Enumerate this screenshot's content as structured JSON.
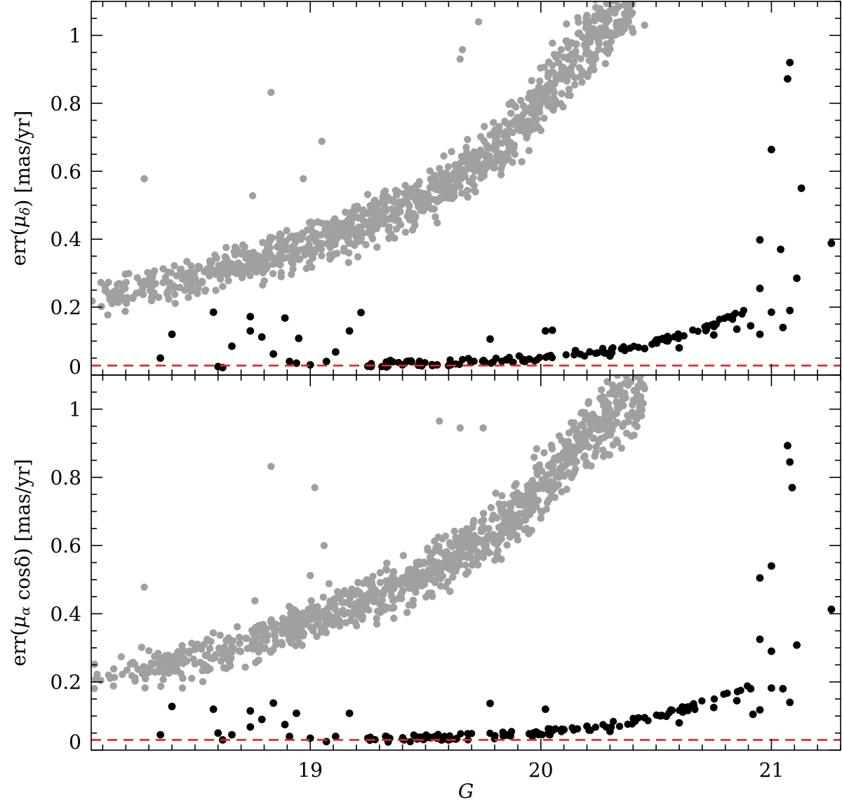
{
  "chart_data": [
    {
      "type": "scatter",
      "panel": "top",
      "ylabel_prefix": "err(",
      "ylabel_mu": "μ",
      "ylabel_sub": "δ",
      "ylabel_suffix": ")  [mas/yr]",
      "xlabel": "",
      "xlim": [
        18.05,
        21.3
      ],
      "ylim": [
        0,
        1.1
      ],
      "yticks": [
        0,
        0.2,
        0.4,
        0.6,
        0.8,
        1
      ],
      "ytick_labels": [
        "0",
        "0.2",
        "0.4",
        "0.6",
        "0.8",
        "1"
      ],
      "xticks": [
        19,
        20,
        21
      ],
      "xtick_labels": [
        "",
        "",
        ""
      ],
      "reference_line": 0.028,
      "grey_curve": [
        [
          18.05,
          0.225
        ],
        [
          18.5,
          0.285
        ],
        [
          19.0,
          0.38
        ],
        [
          19.4,
          0.49
        ],
        [
          19.7,
          0.61
        ],
        [
          19.95,
          0.76
        ],
        [
          20.1,
          0.9
        ],
        [
          20.25,
          1.02
        ],
        [
          20.4,
          1.1
        ]
      ],
      "grey_spread": 0.045,
      "grey_outliers": [
        [
          18.28,
          0.578
        ],
        [
          18.83,
          0.832
        ],
        [
          19.05,
          0.688
        ],
        [
          18.97,
          0.578
        ],
        [
          18.75,
          0.528
        ],
        [
          19.73,
          1.04
        ],
        [
          19.66,
          0.958
        ],
        [
          19.65,
          0.93
        ],
        [
          20.0,
          0.72
        ],
        [
          20.45,
          1.03
        ],
        [
          20.33,
          1.08
        ]
      ],
      "black_points": [
        [
          18.35,
          0.05
        ],
        [
          18.4,
          0.12
        ],
        [
          18.58,
          0.185
        ],
        [
          18.6,
          0.025
        ],
        [
          18.62,
          0.022
        ],
        [
          18.66,
          0.085
        ],
        [
          18.74,
          0.172
        ],
        [
          18.74,
          0.13
        ],
        [
          18.79,
          0.112
        ],
        [
          18.84,
          0.062
        ],
        [
          18.89,
          0.168
        ],
        [
          18.91,
          0.04
        ],
        [
          18.94,
          0.035
        ],
        [
          18.95,
          0.108
        ],
        [
          19.0,
          0.03
        ],
        [
          19.07,
          0.04
        ],
        [
          19.11,
          0.068
        ],
        [
          19.17,
          0.13
        ],
        [
          19.22,
          0.184
        ],
        [
          19.25,
          0.026
        ],
        [
          19.33,
          0.038
        ],
        [
          19.4,
          0.03
        ],
        [
          19.48,
          0.03
        ],
        [
          19.55,
          0.03
        ],
        [
          19.6,
          0.028
        ],
        [
          19.78,
          0.106
        ],
        [
          19.85,
          0.045
        ],
        [
          19.95,
          0.047
        ],
        [
          20.02,
          0.13
        ],
        [
          20.05,
          0.132
        ],
        [
          20.15,
          0.072
        ],
        [
          20.3,
          0.056
        ],
        [
          20.45,
          0.078
        ],
        [
          20.6,
          0.08
        ],
        [
          20.75,
          0.118
        ],
        [
          20.85,
          0.135
        ],
        [
          20.91,
          0.145
        ],
        [
          20.95,
          0.398
        ],
        [
          20.95,
          0.255
        ],
        [
          20.95,
          0.12
        ],
        [
          21.0,
          0.185
        ],
        [
          21.0,
          0.664
        ],
        [
          21.04,
          0.37
        ],
        [
          21.05,
          0.14
        ],
        [
          21.07,
          0.872
        ],
        [
          21.08,
          0.92
        ],
        [
          21.08,
          0.19
        ],
        [
          21.11,
          0.285
        ],
        [
          21.13,
          0.55
        ],
        [
          21.26,
          0.388
        ]
      ]
    },
    {
      "type": "scatter",
      "panel": "bottom",
      "ylabel_prefix": "err(",
      "ylabel_mu": "μ",
      "ylabel_sub": "α",
      "ylabel_suffix": "  cosδ)  [mas/yr]",
      "xlabel": "G",
      "xlim": [
        18.05,
        21.3
      ],
      "ylim": [
        0,
        1.1
      ],
      "yticks": [
        0,
        0.2,
        0.4,
        0.6,
        0.8,
        1
      ],
      "ytick_labels": [
        "0",
        "0.2",
        "0.4",
        "0.6",
        "0.8",
        "1"
      ],
      "xticks": [
        19,
        20,
        21
      ],
      "xtick_labels": [
        "19",
        "20",
        "21"
      ],
      "reference_line": 0.03,
      "grey_curve": [
        [
          18.05,
          0.21
        ],
        [
          18.5,
          0.262
        ],
        [
          19.0,
          0.38
        ],
        [
          19.4,
          0.48
        ],
        [
          19.7,
          0.59
        ],
        [
          19.95,
          0.73
        ],
        [
          20.1,
          0.85
        ],
        [
          20.25,
          0.95
        ],
        [
          20.45,
          1.08
        ]
      ],
      "grey_spread": 0.045,
      "grey_outliers": [
        [
          18.28,
          0.478
        ],
        [
          18.83,
          0.832
        ],
        [
          19.02,
          0.77
        ],
        [
          19.06,
          0.6
        ],
        [
          19.0,
          0.512
        ],
        [
          18.76,
          0.438
        ],
        [
          19.56,
          0.965
        ],
        [
          19.65,
          0.945
        ],
        [
          19.75,
          0.945
        ],
        [
          20.0,
          0.68
        ],
        [
          20.45,
          1.06
        ]
      ],
      "black_points": [
        [
          18.35,
          0.045
        ],
        [
          18.4,
          0.128
        ],
        [
          18.58,
          0.12
        ],
        [
          18.6,
          0.05
        ],
        [
          18.62,
          0.03
        ],
        [
          18.66,
          0.045
        ],
        [
          18.74,
          0.115
        ],
        [
          18.74,
          0.068
        ],
        [
          18.79,
          0.09
        ],
        [
          18.84,
          0.138
        ],
        [
          18.89,
          0.075
        ],
        [
          18.91,
          0.04
        ],
        [
          18.94,
          0.108
        ],
        [
          19.0,
          0.035
        ],
        [
          19.07,
          0.025
        ],
        [
          19.11,
          0.04
        ],
        [
          19.17,
          0.108
        ],
        [
          19.25,
          0.035
        ],
        [
          19.33,
          0.04
        ],
        [
          19.4,
          0.033
        ],
        [
          19.48,
          0.035
        ],
        [
          19.55,
          0.035
        ],
        [
          19.6,
          0.03
        ],
        [
          19.78,
          0.137
        ],
        [
          19.85,
          0.045
        ],
        [
          19.95,
          0.048
        ],
        [
          20.02,
          0.12
        ],
        [
          20.1,
          0.06
        ],
        [
          20.2,
          0.07
        ],
        [
          20.3,
          0.055
        ],
        [
          20.45,
          0.095
        ],
        [
          20.6,
          0.08
        ],
        [
          20.75,
          0.125
        ],
        [
          20.85,
          0.145
        ],
        [
          20.91,
          0.18
        ],
        [
          20.92,
          0.105
        ],
        [
          20.95,
          0.505
        ],
        [
          20.95,
          0.325
        ],
        [
          20.95,
          0.118
        ],
        [
          21.0,
          0.182
        ],
        [
          21.0,
          0.54
        ],
        [
          21.0,
          0.29
        ],
        [
          21.05,
          0.18
        ],
        [
          21.07,
          0.893
        ],
        [
          21.08,
          0.845
        ],
        [
          21.08,
          0.14
        ],
        [
          21.09,
          0.77
        ],
        [
          21.11,
          0.308
        ],
        [
          21.26,
          0.413
        ]
      ]
    }
  ],
  "colors": {
    "grey_points": "#a0a0a0",
    "black_points": "#000000",
    "reference_line": "#e0262b",
    "frame": "#000000"
  }
}
